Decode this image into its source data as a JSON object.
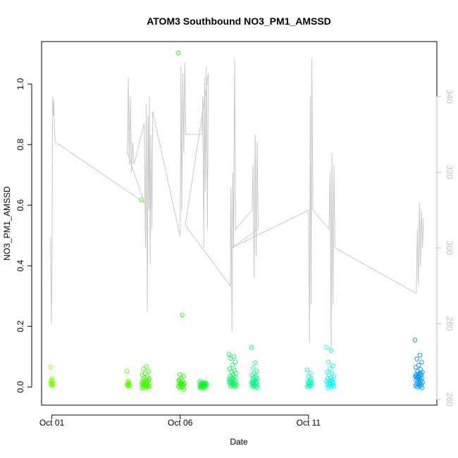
{
  "chart_data": {
    "type": "scatter",
    "title": "ATOM3 Southbound NO3_PM1_AMSSD",
    "xlabel": "Date",
    "ylabel": "NO3_PM1_AMSSD",
    "x_ticks": [
      "Oct 01",
      "Oct 06",
      "Oct 11"
    ],
    "x_tick_days": [
      1,
      6,
      11
    ],
    "xlim_days": [
      0.6,
      16.0
    ],
    "ylim": [
      -0.06,
      1.14
    ],
    "y_ticks": [
      "0.0",
      "0.2",
      "0.4",
      "0.6",
      "0.8",
      "1.0"
    ],
    "y_tick_values": [
      0.0,
      0.2,
      0.4,
      0.6,
      0.8,
      1.0
    ],
    "y2_ticks": [
      "260",
      "280",
      "300",
      "320",
      "340"
    ],
    "y2_tick_values": [
      260,
      280,
      300,
      320,
      340
    ],
    "y2lim": [
      258.5,
      354.5
    ],
    "grid": false,
    "point_style": "open-circle",
    "colors": {
      "line": "#c8c8c8",
      "axis": "#000000",
      "right_axis": "#c0c0c0"
    },
    "clusters": [
      {
        "day": 1.0,
        "width": 0.1,
        "color": "#7fff00",
        "values": [
          0.065,
          0.028,
          0.022,
          0.018,
          0.015,
          0.012,
          0.01,
          0.008,
          0.006,
          0.004,
          0.02,
          0.011
        ]
      },
      {
        "day": 3.98,
        "width": 0.1,
        "color": "#5cff00",
        "values": [
          0.052,
          0.02,
          0.015,
          0.012,
          0.009,
          0.007,
          0.005,
          0.004,
          0.003,
          0.01
        ]
      },
      {
        "day": 4.65,
        "width": 0.32,
        "color": "#40ff00",
        "values": [
          0.618,
          0.067,
          0.06,
          0.052,
          0.045,
          0.04,
          0.035,
          0.03,
          0.028,
          0.025,
          0.022,
          0.02,
          0.018,
          0.015,
          0.013,
          0.011,
          0.009,
          0.008,
          0.006,
          0.005,
          0.004,
          0.003,
          0.002,
          0.001,
          0.0,
          -0.002,
          -0.004,
          0.012,
          0.016,
          0.024
        ]
      },
      {
        "day": 6.05,
        "width": 0.25,
        "color": "#20ff00",
        "values": [
          1.102,
          0.238,
          0.041,
          0.035,
          0.028,
          0.022,
          0.018,
          0.015,
          0.012,
          0.01,
          0.008,
          0.006,
          0.004,
          0.002,
          0.0,
          -0.003,
          -0.008,
          0.014,
          0.02,
          0.009
        ]
      },
      {
        "day": 6.9,
        "width": 0.28,
        "color": "#00ff20",
        "values": [
          0.018,
          0.015,
          0.013,
          0.011,
          0.009,
          0.008,
          0.007,
          0.006,
          0.005,
          0.004,
          0.003,
          0.002,
          0.001,
          0.0,
          -0.002,
          -0.004,
          0.012,
          0.01
        ]
      },
      {
        "day": 8.05,
        "width": 0.3,
        "color": "#00ff55",
        "values": [
          0.108,
          0.1,
          0.094,
          0.082,
          0.072,
          0.06,
          0.055,
          0.05,
          0.045,
          0.04,
          0.035,
          0.032,
          0.028,
          0.025,
          0.022,
          0.02,
          0.017,
          0.015,
          0.012,
          0.01,
          0.008,
          0.006,
          0.004,
          0.002,
          0.0,
          0.03,
          0.018,
          0.011
        ]
      },
      {
        "day": 8.9,
        "width": 0.25,
        "color": "#00ff80",
        "values": [
          0.13,
          0.08,
          0.062,
          0.052,
          0.045,
          0.04,
          0.035,
          0.03,
          0.028,
          0.025,
          0.022,
          0.02,
          0.017,
          0.015,
          0.012,
          0.01,
          0.008,
          0.006,
          0.004,
          0.002,
          0.0,
          -0.003,
          0.024,
          0.014
        ]
      },
      {
        "day": 11.05,
        "width": 0.2,
        "color": "#00ffbf",
        "values": [
          0.057,
          0.045,
          0.035,
          0.028,
          0.022,
          0.018,
          0.015,
          0.012,
          0.01,
          0.008,
          0.006,
          0.004,
          0.002,
          0.0,
          0.02,
          0.013
        ]
      },
      {
        "day": 11.85,
        "width": 0.3,
        "color": "#00ffee",
        "values": [
          0.13,
          0.12,
          0.082,
          0.07,
          0.06,
          0.05,
          0.045,
          0.04,
          0.035,
          0.03,
          0.028,
          0.025,
          0.022,
          0.02,
          0.018,
          0.015,
          0.012,
          0.01,
          0.008,
          0.006,
          0.004,
          0.002,
          0.0,
          -0.003,
          0.016,
          0.011
        ]
      },
      {
        "day": 15.3,
        "width": 0.3,
        "color": "#0095ff",
        "values": [
          0.155,
          0.105,
          0.092,
          0.082,
          0.072,
          0.065,
          0.058,
          0.052,
          0.048,
          0.045,
          0.042,
          0.04,
          0.038,
          0.035,
          0.032,
          0.03,
          0.028,
          0.025,
          0.022,
          0.02,
          0.018,
          0.015,
          0.012,
          0.01,
          0.008,
          0.006,
          0.004,
          0.002,
          0.0,
          -0.003,
          0.026,
          0.036,
          0.044,
          0.033
        ]
      }
    ],
    "secondary_line": {
      "description": "gray trace on right axis",
      "points": [
        [
          0.95,
          303
        ],
        [
          0.98,
          280
        ],
        [
          1.0,
          290
        ],
        [
          1.03,
          340
        ],
        [
          1.06,
          335
        ],
        [
          1.08,
          339
        ],
        [
          1.1,
          332
        ],
        [
          1.13,
          328
        ],
        [
          4.6,
          312
        ],
        [
          3.95,
          325
        ],
        [
          3.98,
          345
        ],
        [
          4.02,
          322
        ],
        [
          4.06,
          340
        ],
        [
          4.1,
          320
        ],
        [
          4.15,
          328
        ],
        [
          4.2,
          322
        ],
        [
          4.6,
          333
        ],
        [
          4.65,
          300
        ],
        [
          4.68,
          338
        ],
        [
          4.72,
          283
        ],
        [
          4.75,
          335
        ],
        [
          4.78,
          310
        ],
        [
          4.8,
          340
        ],
        [
          4.83,
          296
        ],
        [
          4.86,
          330
        ],
        [
          4.9,
          305
        ],
        [
          4.93,
          336
        ],
        [
          6.0,
          303
        ],
        [
          6.03,
          348
        ],
        [
          6.06,
          310
        ],
        [
          6.1,
          346
        ],
        [
          6.14,
          325
        ],
        [
          6.18,
          349
        ],
        [
          6.22,
          330
        ],
        [
          6.85,
          330
        ],
        [
          6.88,
          340
        ],
        [
          6.92,
          300
        ],
        [
          6.95,
          345
        ],
        [
          6.98,
          315
        ],
        [
          7.02,
          348
        ],
        [
          7.06,
          305
        ],
        [
          7.1,
          346
        ],
        [
          6.2,
          306
        ],
        [
          7.95,
          290
        ],
        [
          7.98,
          316
        ],
        [
          8.02,
          278
        ],
        [
          8.05,
          320
        ],
        [
          8.08,
          300
        ],
        [
          8.12,
          350
        ],
        [
          8.16,
          305
        ],
        [
          8.8,
          310
        ],
        [
          8.84,
          322
        ],
        [
          8.88,
          292
        ],
        [
          8.92,
          330
        ],
        [
          8.96,
          298
        ],
        [
          9.0,
          328
        ],
        [
          9.04,
          305
        ],
        [
          8.0,
          300
        ],
        [
          11.0,
          310
        ],
        [
          11.04,
          275
        ],
        [
          11.07,
          340
        ],
        [
          11.1,
          285
        ],
        [
          11.13,
          350
        ],
        [
          11.17,
          310
        ],
        [
          11.8,
          305
        ],
        [
          11.84,
          320
        ],
        [
          11.88,
          272
        ],
        [
          11.91,
          325
        ],
        [
          11.95,
          285
        ],
        [
          11.99,
          322
        ],
        [
          12.03,
          300
        ],
        [
          15.2,
          288
        ],
        [
          15.24,
          305
        ],
        [
          15.28,
          290
        ],
        [
          15.32,
          312
        ],
        [
          15.36,
          295
        ],
        [
          15.4,
          310
        ],
        [
          15.44,
          300
        ],
        [
          15.48,
          308
        ]
      ]
    }
  }
}
